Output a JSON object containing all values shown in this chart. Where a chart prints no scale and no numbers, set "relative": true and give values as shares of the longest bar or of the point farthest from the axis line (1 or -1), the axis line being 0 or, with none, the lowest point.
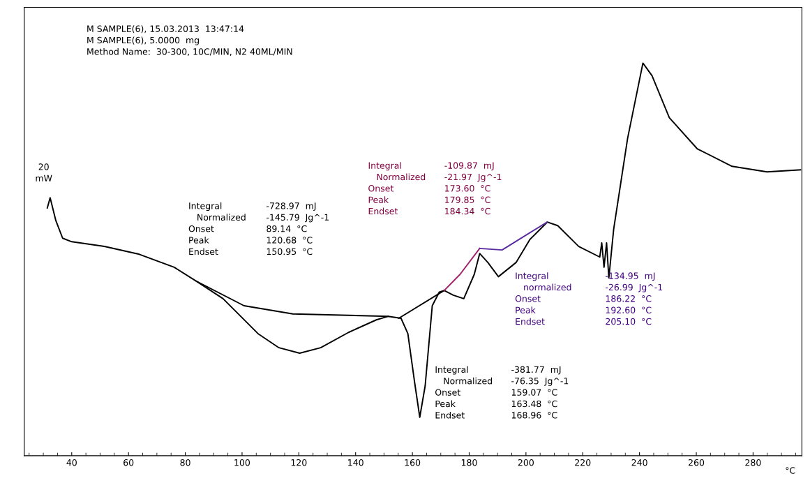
{
  "chart_data": {
    "type": "line",
    "relative": true,
    "xlabel": "°C",
    "xlim": [
      23.3,
      297.2
    ],
    "xticks": [
      40,
      60,
      80,
      100,
      120,
      140,
      160,
      180,
      200,
      220,
      240,
      260,
      280
    ],
    "tick_labels": "x",
    "grid": false,
    "legend": false,
    "series": [
      {
        "color": "#000000",
        "x": [
          31.4,
          32.4,
          34.4,
          36.8,
          40,
          51.5,
          63.8,
          76.1,
          84,
          93.3,
          105.6,
          113,
          120.3,
          127.7,
          137.5,
          147.3,
          151.5,
          156,
          158.4,
          160.8,
          162.6,
          164.5,
          167,
          169.5,
          171.2,
          174.4,
          178.1,
          181.8,
          183.7,
          186.6,
          190.3,
          196.5,
          201.4,
          207.5,
          211.2,
          218.6,
          226,
          226.7,
          227.5,
          228.4,
          229.2,
          230.9,
          235.8,
          241.2,
          244.4,
          250.5,
          260.3,
          272.6,
          284.9,
          296.7
        ],
        "values": [
          0.631,
          0.657,
          0.599,
          0.554,
          0.545,
          0.533,
          0.513,
          0.48,
          0.444,
          0.4,
          0.311,
          0.275,
          0.261,
          0.275,
          0.314,
          0.346,
          0.355,
          0.35,
          0.311,
          0.186,
          0.098,
          0.178,
          0.382,
          0.417,
          0.421,
          0.409,
          0.4,
          0.462,
          0.515,
          0.492,
          0.456,
          0.492,
          0.551,
          0.595,
          0.586,
          0.533,
          0.506,
          0.542,
          0.48,
          0.542,
          0.453,
          0.577,
          0.808,
          1,
          0.968,
          0.861,
          0.782,
          0.737,
          0.723,
          0.728
        ]
      },
      {
        "color": "#000000",
        "x": [
          84,
          100.7,
          117.9,
          151.5
        ],
        "values": [
          0.444,
          0.382,
          0.361,
          0.355
        ]
      },
      {
        "color": "#000000",
        "x": [
          155.2,
          171.2
        ],
        "values": [
          0.35,
          0.421
        ]
      },
      {
        "color": "#a0206a",
        "x": [
          171.2,
          176.8,
          183.7
        ],
        "values": [
          0.421,
          0.462,
          0.528
        ]
      },
      {
        "color": "#5a2ca0",
        "x": [
          183.7,
          191.6,
          201.4,
          207.5
        ],
        "values": [
          0.528,
          0.524,
          0.568,
          0.595
        ]
      }
    ],
    "annotations": [
      "M SAMPLE(6), 15.03.2013  13:47:14\nM SAMPLE(6), 5.0000  mg\nMethod Name:  30-300, 10C/MIN, N2 40ML/MIN",
      "20\nmW",
      "Integral\n   Normalized\nOnset\nPeak\nEndset",
      "-728.97  mJ\n-145.79  Jg^-1\n89.14  °C\n120.68  °C\n150.95  °C",
      "Integral\n   Normalized\nOnset\nPeak\nEndset",
      "-109.87  mJ\n-21.97  Jg^-1\n173.60  °C\n179.85  °C\n184.34  °C",
      "Integral\n   normalized\nOnset\nPeak\nEndset",
      "-134.95  mJ\n-26.99  Jg^-1\n186.22  °C\n192.60  °C\n205.10  °C",
      "Integral\n   Normalized\nOnset\nPeak\nEndset",
      "-381.77  mJ\n-76.35  Jg^-1\n159.07  °C\n163.48  °C\n168.96  °C"
    ]
  }
}
